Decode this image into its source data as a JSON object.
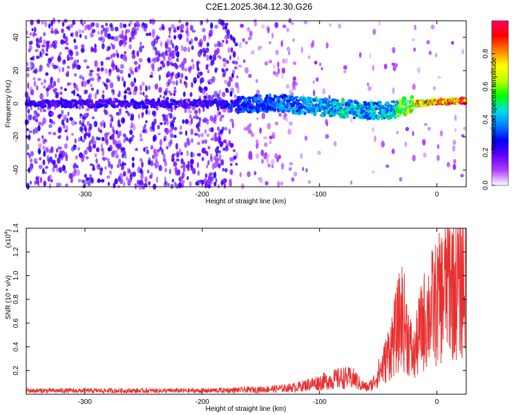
{
  "figure": {
    "title": "C2E1.2025.364.12.30.G26"
  },
  "chart_data": [
    {
      "type": "heatmap",
      "xlabel": "Height of straight line (km)",
      "ylabel": "Frequency (Hz)",
      "xlim": [
        -350,
        25
      ],
      "ylim": [
        -50,
        50
      ],
      "xticks": [
        -300,
        -200,
        -100,
        0
      ],
      "yticks": [
        -40,
        -20,
        0,
        20,
        40
      ],
      "colorbar": {
        "label": "Normalized spectral amplitude",
        "ticks": [
          0.0,
          0.2,
          0.4,
          0.6,
          0.8
        ],
        "tick_labels": [
          "0.0",
          "0.2",
          "0.4",
          "0.6",
          "0.8"
        ],
        "colormap": [
          "#ffffff",
          "#b040ff",
          "#6000ff",
          "#0000ff",
          "#0080ff",
          "#00e0e0",
          "#00ff00",
          "#c0ff00",
          "#ffff00",
          "#ff8000",
          "#ff0000",
          "#ff0060"
        ]
      },
      "ridge": [
        {
          "x": -280,
          "y": 0,
          "amp": 0.25
        },
        {
          "x": -240,
          "y": 0,
          "amp": 0.25
        },
        {
          "x": -200,
          "y": 0,
          "amp": 0.25
        },
        {
          "x": -160,
          "y": 0,
          "amp": 0.35
        },
        {
          "x": -130,
          "y": 0,
          "amp": 0.4
        },
        {
          "x": -100,
          "y": -2,
          "amp": 0.45
        },
        {
          "x": -80,
          "y": -3,
          "amp": 0.5
        },
        {
          "x": -60,
          "y": -4,
          "amp": 0.45
        },
        {
          "x": -40,
          "y": -4,
          "amp": 0.45
        },
        {
          "x": -20,
          "y": 0,
          "amp": 0.8
        },
        {
          "x": 0,
          "y": 1,
          "amp": 0.95
        },
        {
          "x": 25,
          "y": 2,
          "amp": 0.95
        }
      ],
      "background_amp": 0.2
    },
    {
      "type": "line",
      "xlabel": "Height of straight line (km)",
      "ylabel": "SNR (10 * v/v)",
      "y_scale_label": "(x10",
      "y_scale_exponent": "4",
      "y_scale_suffix": ")",
      "xlim": [
        -350,
        25
      ],
      "ylim": [
        0,
        1.4
      ],
      "xticks": [
        -300,
        -200,
        -100,
        0
      ],
      "yticks": [
        0.2,
        0.4,
        0.6,
        0.8,
        1.0,
        1.2,
        1.4
      ],
      "ytick_labels": [
        "0.2",
        "0.4",
        "0.6",
        "0.8",
        "1.0",
        "1.2",
        "1.4"
      ],
      "series": [
        {
          "color": "#e83030",
          "x": [
            -350,
            -300,
            -250,
            -200,
            -170,
            -150,
            -130,
            -120,
            -110,
            -100,
            -90,
            -80,
            -70,
            -65,
            -60,
            -55,
            -50,
            -45,
            -40,
            -35,
            -30,
            -25,
            -20,
            -15,
            -10,
            -5,
            0,
            5,
            10,
            15,
            20,
            25
          ],
          "y": [
            0.03,
            0.03,
            0.03,
            0.03,
            0.035,
            0.04,
            0.05,
            0.06,
            0.08,
            0.1,
            0.12,
            0.14,
            0.13,
            0.08,
            0.06,
            0.1,
            0.2,
            0.3,
            0.45,
            0.6,
            0.8,
            0.6,
            0.35,
            0.6,
            0.75,
            0.85,
            0.9,
            1.0,
            1.2,
            1.05,
            1.1,
            1.15
          ]
        }
      ]
    }
  ]
}
